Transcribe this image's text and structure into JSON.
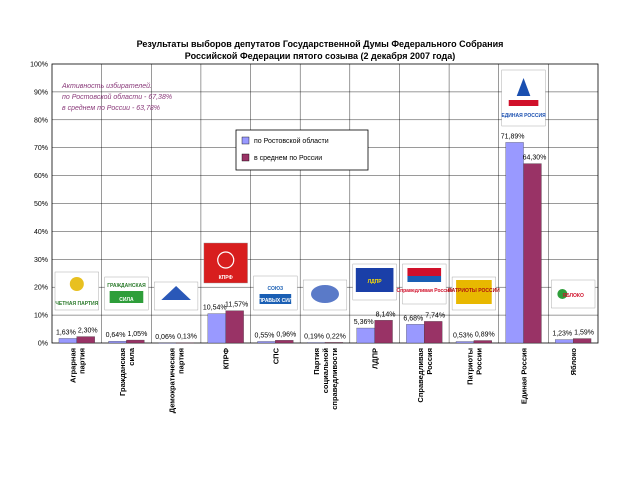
{
  "chart_data": {
    "type": "bar",
    "title": "Результаты выборов депутатов Государственной Думы Федерального Собрания",
    "subtitle": "Российской Федерации пятого созыва (2 декабря 2007 года)",
    "categories": [
      "Аграрная партия",
      "Гражданская сила",
      "Демократическая партия",
      "КПРФ",
      "СПС",
      "Партия социальной справедливости",
      "ЛДПР",
      "Справедливая Россия",
      "Патриоты России",
      "Единая Россия",
      "Яблоко"
    ],
    "series": [
      {
        "name": "по Ростовской области",
        "color": "#9999ff",
        "values": [
          1.63,
          0.64,
          0.06,
          10.54,
          0.55,
          0.19,
          5.36,
          6.68,
          0.53,
          71.89,
          1.23
        ],
        "labels": [
          "1,63%",
          "0,64%",
          "0,06%",
          "10,54%",
          "0,55%",
          "0,19%",
          "5,36%",
          "6,68%",
          "0,53%",
          "71,89%",
          "1,23%"
        ]
      },
      {
        "name": "в среднем по России",
        "color": "#993366",
        "values": [
          2.3,
          1.05,
          0.13,
          11.57,
          0.96,
          0.22,
          8.14,
          7.74,
          0.89,
          64.3,
          1.59
        ],
        "labels": [
          "2,30%",
          "1,05%",
          "0,13%",
          "11,57%",
          "0,96%",
          "0,22%",
          "8,14%",
          "7,74%",
          "0,89%",
          "64,30%",
          "1,59%"
        ]
      }
    ],
    "ylim": [
      0,
      100
    ],
    "yticks": [
      "0%",
      "10%",
      "20%",
      "30%",
      "40%",
      "50%",
      "60%",
      "70%",
      "80%",
      "90%",
      "100%"
    ],
    "grid": true,
    "legend_position": "top-center",
    "annotation": [
      "Активность избирателей:",
      "по Ростовской области - 67,38%",
      "в среднем по России - 63,78%"
    ]
  },
  "logos": {
    "agrarian": "ЧЕТНАЯ ПАРТИЯ",
    "grazhdanskaya": "СИЛА",
    "grazhdanskaya_top": "ГРАЖДАНСКАЯ",
    "kprf": "КПРФ",
    "sps_top": "СОЮЗ",
    "sps": "ПРАВЫХ СИЛ",
    "ldpr": "ЛДПР",
    "sr": "Справедливая Россия",
    "patriots": "ПАТРИОТЫ РОССИИ",
    "er": "ЕДИНАЯ РОССИЯ",
    "yabloko": "ЯБЛОКО"
  }
}
